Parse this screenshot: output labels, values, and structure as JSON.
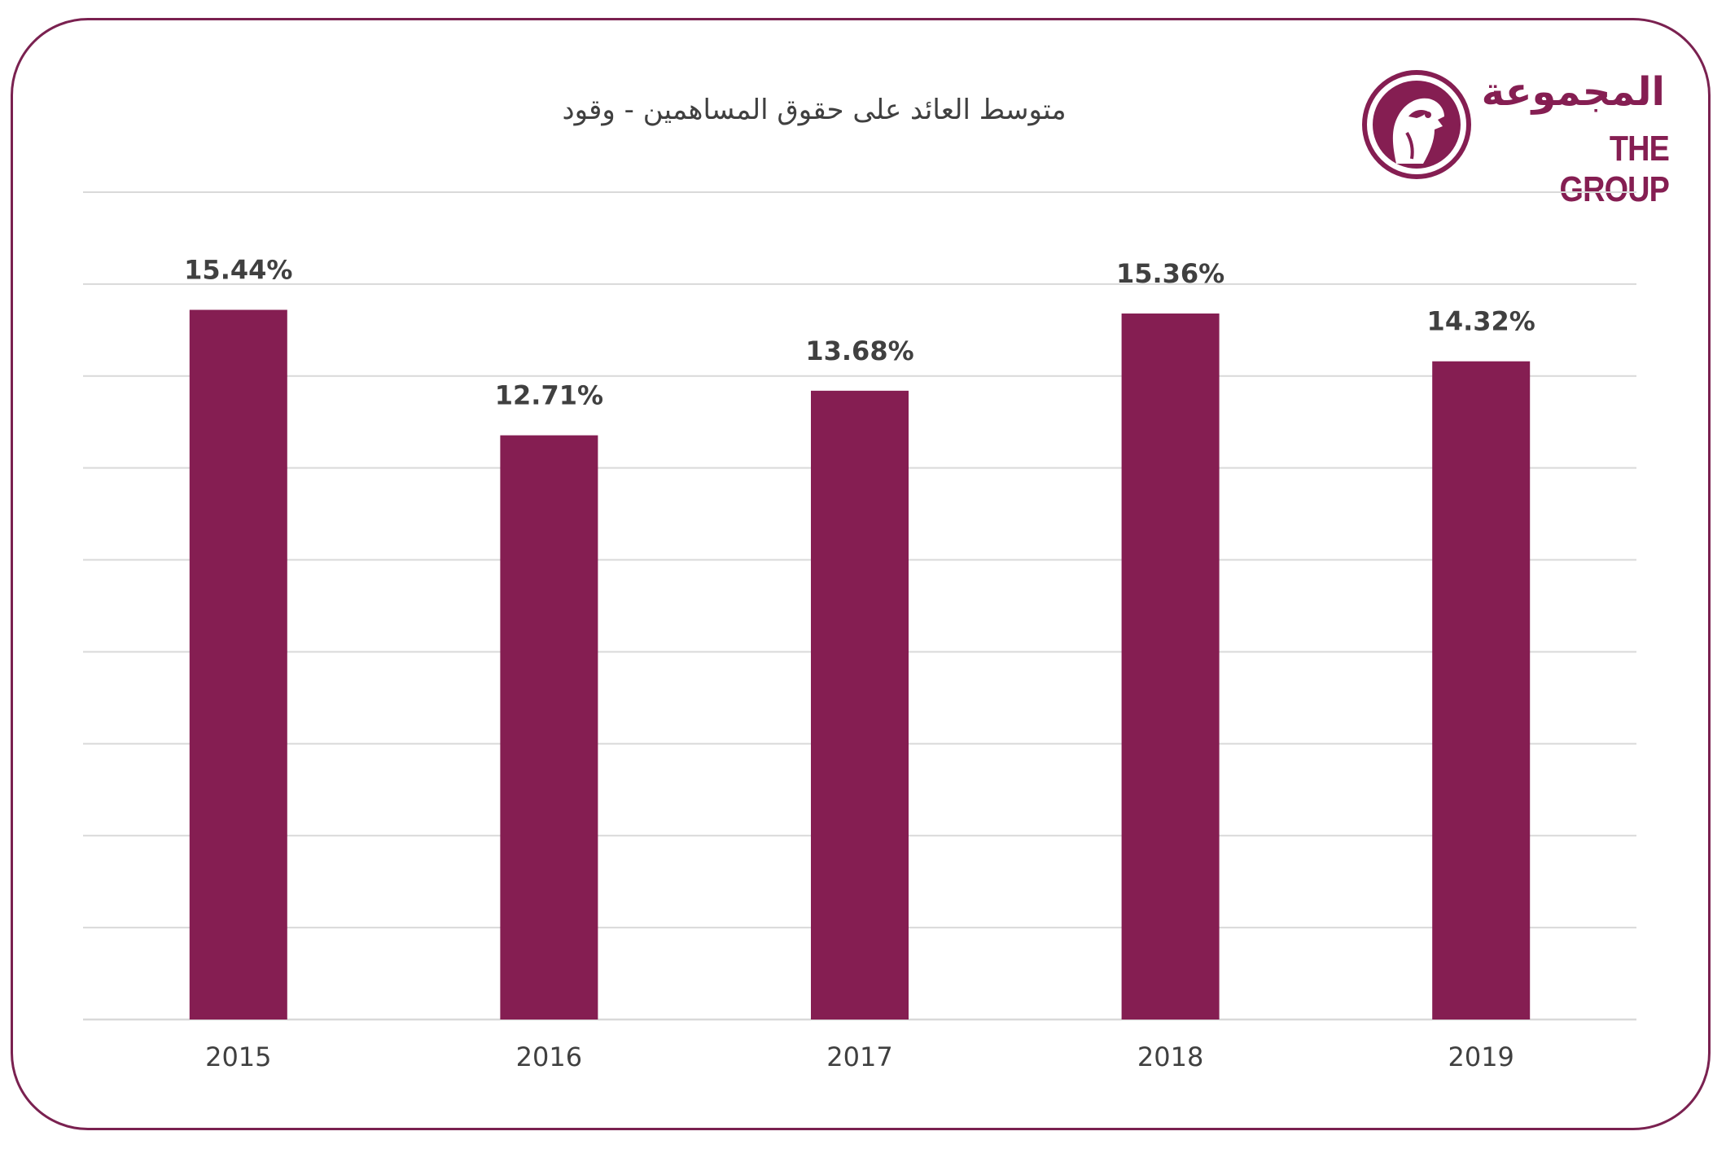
{
  "logo": {
    "arabic_text": "المجموعة",
    "english_text": "THE GROUP"
  },
  "colors": {
    "bar": "#851e52",
    "frame": "#7a2150",
    "grid": "#d9d9d9",
    "text": "#404040"
  },
  "chart_data": {
    "type": "bar",
    "title": "متوسط العائد على حقوق المساهمين - وقود",
    "xlabel": "",
    "ylabel": "",
    "categories": [
      "2015",
      "2016",
      "2017",
      "2018",
      "2019"
    ],
    "values": [
      15.44,
      12.71,
      13.68,
      15.36,
      14.32
    ],
    "value_labels": [
      "15.44%",
      "12.71%",
      "13.68%",
      "15.36%",
      "14.32%"
    ],
    "ylim": [
      0,
      18
    ],
    "y_tick_step": 2,
    "grid": true,
    "y_axis_labels_shown": false,
    "legend": "none"
  }
}
